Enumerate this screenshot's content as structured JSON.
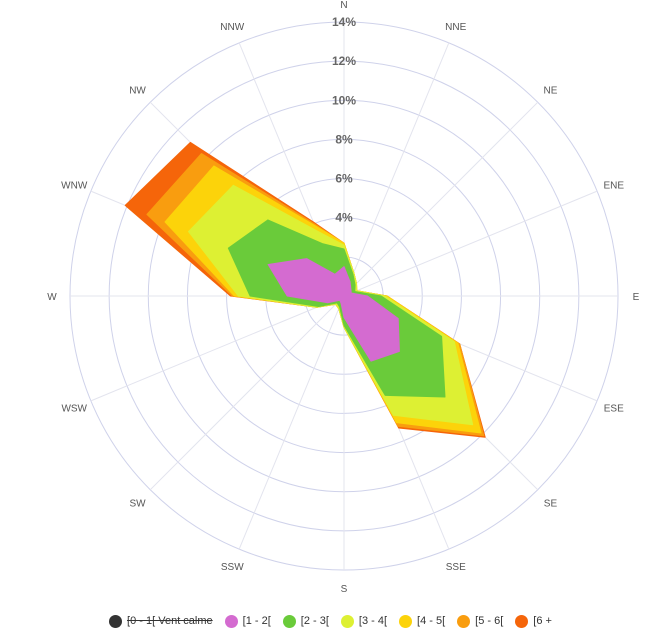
{
  "chart_data": {
    "type": "windrose",
    "directions": [
      "N",
      "NNE",
      "NE",
      "ENE",
      "E",
      "ESE",
      "SE",
      "SSE",
      "S",
      "SSW",
      "SW",
      "WSW",
      "W",
      "WNW",
      "NW",
      "NNW"
    ],
    "radial_ticks": [
      "4%",
      "6%",
      "8%",
      "10%",
      "12%",
      "14%"
    ],
    "rmax": 14,
    "stacked": true,
    "series": [
      {
        "name": "[0 - 1[ Vent calme",
        "color": "#333333",
        "hidden": true,
        "values": [
          0,
          0,
          0,
          0,
          0,
          0,
          0,
          0,
          0,
          0,
          0,
          0,
          0,
          0,
          0,
          0
        ]
      },
      {
        "name": "[1 - 2[",
        "color": "#d46bd0",
        "hidden": false,
        "values": [
          1.5,
          0.8,
          0.5,
          0.4,
          1.2,
          3.0,
          4.0,
          3.6,
          1.1,
          0.4,
          0.3,
          0.9,
          2.9,
          4.2,
          2.7,
          1.2
        ]
      },
      {
        "name": "[2 - 3[",
        "color": "#6acb3a",
        "hidden": false,
        "values": [
          0.9,
          0.4,
          0.3,
          0.2,
          0.7,
          2.4,
          3.3,
          1.9,
          0.4,
          0.2,
          0.2,
          0.5,
          1.9,
          2.2,
          2.8,
          1.7
        ]
      },
      {
        "name": "[3 - 4[",
        "color": "#ddf033",
        "hidden": false,
        "values": [
          0.2,
          0.1,
          0.1,
          0.1,
          0.2,
          0.7,
          2.0,
          1.1,
          0.1,
          0.1,
          0.1,
          0.1,
          0.6,
          2.2,
          2.5,
          0.7
        ]
      },
      {
        "name": "[4 - 5[",
        "color": "#fcd30a",
        "hidden": false,
        "values": [
          0.1,
          0,
          0,
          0,
          0.1,
          0.2,
          0.6,
          0.4,
          0,
          0,
          0,
          0,
          0.2,
          1.3,
          1.4,
          0.3
        ]
      },
      {
        "name": "[5 - 6[",
        "color": "#f99d0f",
        "hidden": false,
        "values": [
          0,
          0,
          0,
          0,
          0,
          0.1,
          0.2,
          0.2,
          0,
          0,
          0,
          0,
          0.1,
          1.0,
          0.9,
          0.1
        ]
      },
      {
        "name": "[6 +",
        "color": "#f5650a",
        "hidden": false,
        "values": [
          0,
          0,
          0,
          0,
          0,
          0,
          0.1,
          0.1,
          0,
          0,
          0,
          0,
          0.1,
          1.2,
          0.8,
          0.1
        ]
      }
    ]
  }
}
